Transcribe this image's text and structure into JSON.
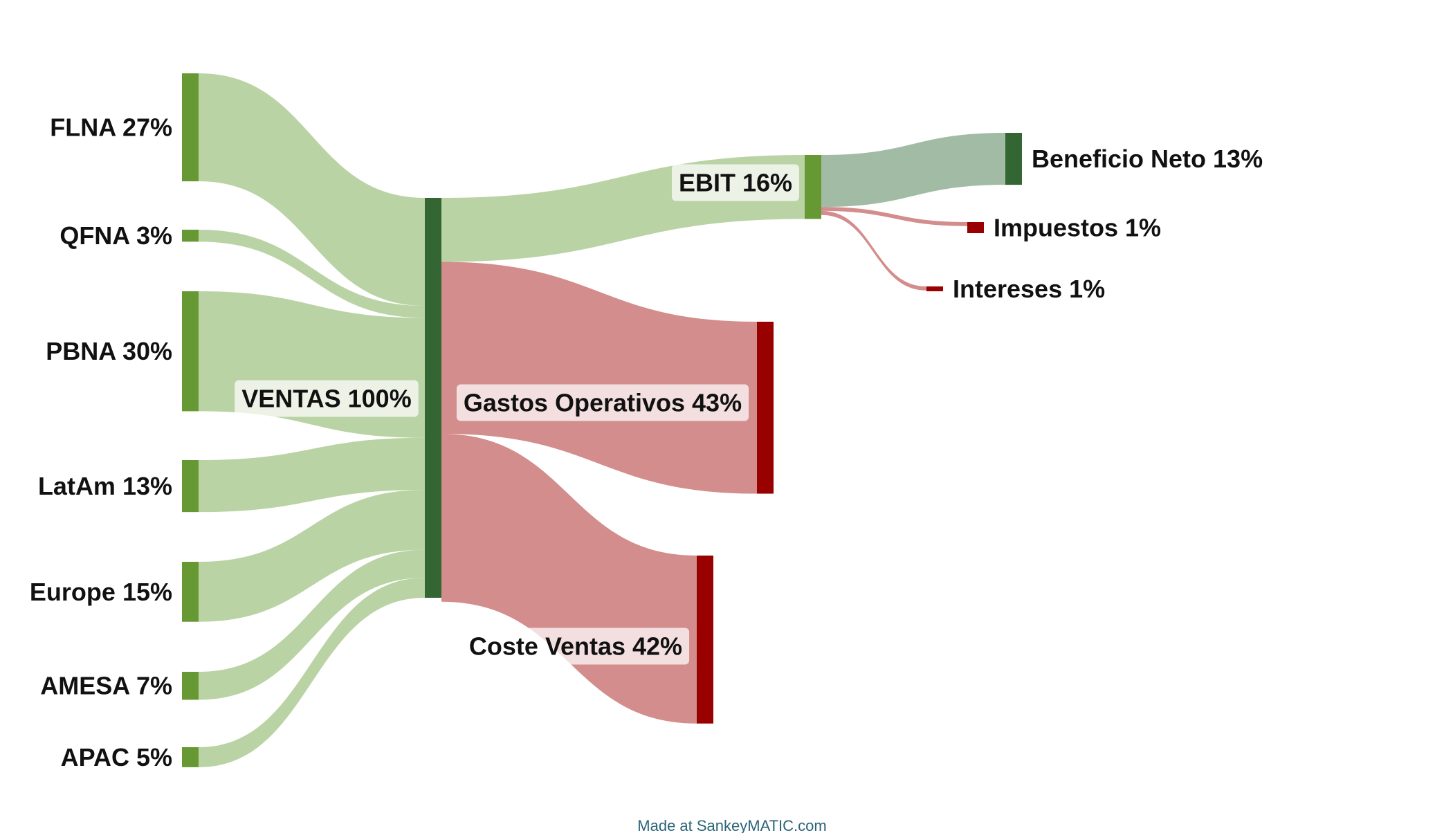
{
  "colors": {
    "green_node": "#669933",
    "dark_green_node": "#336633",
    "red_node": "#990000",
    "green_flow": "#bad3a5",
    "net_flow": "#a2bba4",
    "red_flow": "#d28d8c",
    "credit_text": "#2a6478"
  },
  "chart_data": {
    "type": "sankey",
    "nodes": [
      {
        "id": "flna",
        "label": "FLNA 27%",
        "value": 27,
        "column": 0
      },
      {
        "id": "qfna",
        "label": "QFNA 3%",
        "value": 3,
        "column": 0
      },
      {
        "id": "pbna",
        "label": "PBNA 30%",
        "value": 30,
        "column": 0
      },
      {
        "id": "latam",
        "label": "LatAm 13%",
        "value": 13,
        "column": 0
      },
      {
        "id": "europe",
        "label": "Europe 15%",
        "value": 15,
        "column": 0
      },
      {
        "id": "amesa",
        "label": "AMESA 7%",
        "value": 7,
        "column": 0
      },
      {
        "id": "apac",
        "label": "APAC 5%",
        "value": 5,
        "column": 0
      },
      {
        "id": "ventas",
        "label": "VENTAS 100%",
        "value": 100,
        "column": 1
      },
      {
        "id": "ebit",
        "label": "EBIT 16%",
        "value": 16,
        "column": 2
      },
      {
        "id": "gastos",
        "label": "Gastos Operativos 43%",
        "value": 43,
        "column": 2
      },
      {
        "id": "coste",
        "label": "Coste Ventas 42%",
        "value": 42,
        "column": 2
      },
      {
        "id": "beneficio",
        "label": "Beneficio Neto 13%",
        "value": 13,
        "column": 3
      },
      {
        "id": "impuestos",
        "label": "Impuestos 1%",
        "value": 1,
        "column": 3
      },
      {
        "id": "intereses",
        "label": "Intereses 1%",
        "value": 1,
        "column": 3
      }
    ],
    "links": [
      {
        "source": "flna",
        "target": "ventas",
        "value": 27
      },
      {
        "source": "qfna",
        "target": "ventas",
        "value": 3
      },
      {
        "source": "pbna",
        "target": "ventas",
        "value": 30
      },
      {
        "source": "latam",
        "target": "ventas",
        "value": 13
      },
      {
        "source": "europe",
        "target": "ventas",
        "value": 15
      },
      {
        "source": "amesa",
        "target": "ventas",
        "value": 7
      },
      {
        "source": "apac",
        "target": "ventas",
        "value": 5
      },
      {
        "source": "ventas",
        "target": "ebit",
        "value": 16
      },
      {
        "source": "ventas",
        "target": "gastos",
        "value": 43
      },
      {
        "source": "ventas",
        "target": "coste",
        "value": 42
      },
      {
        "source": "ebit",
        "target": "beneficio",
        "value": 13
      },
      {
        "source": "ebit",
        "target": "impuestos",
        "value": 1
      },
      {
        "source": "ebit",
        "target": "intereses",
        "value": 1
      }
    ]
  },
  "footer": {
    "credit": "Made at SankeyMATIC.com"
  }
}
